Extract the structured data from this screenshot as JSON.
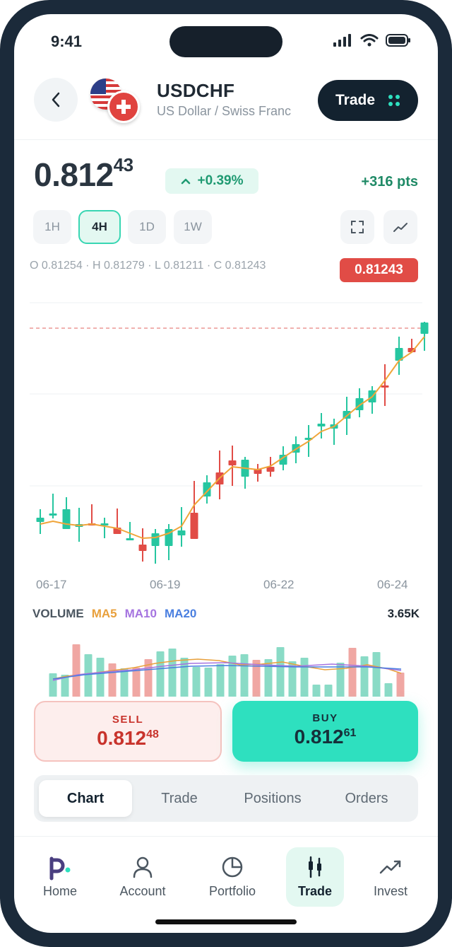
{
  "status_bar": {
    "time": "9:41"
  },
  "header": {
    "symbol": "USDCHF",
    "name": "US Dollar / Swiss Franc",
    "trade_button": "Trade"
  },
  "price": {
    "main": "0.812",
    "pipette": "43",
    "change": "+0.39%",
    "points": "+316 pts"
  },
  "timeframes": [
    "1H",
    "4H",
    "1D",
    "1W"
  ],
  "active_timeframe": "4H",
  "ohlc": "O 0.81254 · H 0.81279 · L 0.81211 · C 0.81243",
  "last_price_tag": "0.81243",
  "chart": {
    "dates": [
      "06-17",
      "06-19",
      "06-22",
      "06-24"
    ],
    "colors": {
      "up": "#26c6a0",
      "down": "#e14c46",
      "ma": "#f0a53a",
      "last_line": "#e8847f"
    }
  },
  "volume": {
    "title": "VOLUME",
    "ma5": "MA5",
    "ma10": "MA10",
    "ma20": "MA20",
    "value": "3.65K"
  },
  "sell": {
    "label": "SELL",
    "main": "0.812",
    "pipette": "48"
  },
  "buy": {
    "label": "BUY",
    "main": "0.812",
    "pipette": "61"
  },
  "tabs": [
    "Chart",
    "Trade",
    "Positions",
    "Orders"
  ],
  "nav": [
    {
      "label": "Home",
      "icon": "brand-p-icon"
    },
    {
      "label": "Account",
      "icon": "person-icon"
    },
    {
      "label": "Portfolio",
      "icon": "pie-chart-icon"
    },
    {
      "label": "Trade",
      "icon": "candlestick-icon"
    },
    {
      "label": "Invest",
      "icon": "trend-up-icon"
    }
  ]
}
